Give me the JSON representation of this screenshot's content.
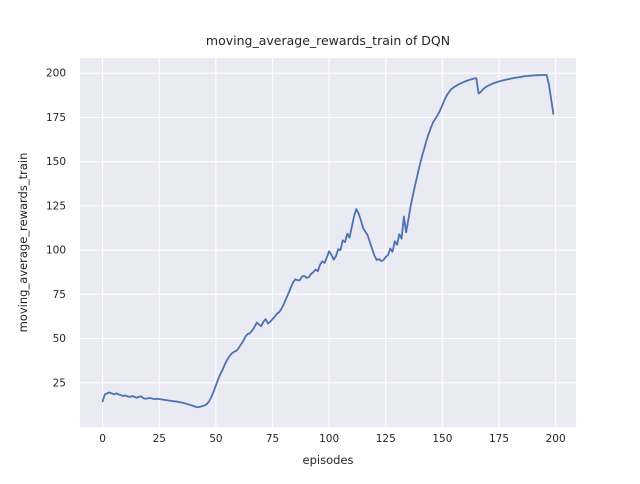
{
  "figure": {
    "background": "#ffffff"
  },
  "chart_data": {
    "type": "line",
    "title": "moving_average_rewards_train of DQN",
    "xlabel": "episodes",
    "ylabel": "moving_average_rewards_train",
    "x_ticks": [
      0,
      25,
      50,
      75,
      100,
      125,
      150,
      175,
      200
    ],
    "y_ticks": [
      25,
      50,
      75,
      100,
      125,
      150,
      175,
      200
    ],
    "xlim": [
      -10,
      209
    ],
    "ylim": [
      0,
      208.6
    ],
    "grid": true,
    "legend": "none",
    "style": {
      "line_color": "#4c72b0",
      "line_width": 1.8,
      "plot_background": "#eaeaf2",
      "grid_color": "#ffffff",
      "text_color": "#262626"
    },
    "series": [
      {
        "name": "DQN",
        "x": [
          0,
          1,
          2,
          3,
          4,
          5,
          6,
          7,
          8,
          9,
          10,
          11,
          12,
          13,
          14,
          15,
          16,
          17,
          18,
          19,
          20,
          21,
          22,
          23,
          24,
          25,
          26,
          27,
          28,
          29,
          30,
          31,
          32,
          33,
          34,
          35,
          36,
          37,
          38,
          39,
          40,
          41,
          42,
          43,
          44,
          45,
          46,
          47,
          48,
          49,
          50,
          51,
          52,
          53,
          54,
          55,
          56,
          57,
          58,
          59,
          60,
          61,
          62,
          63,
          64,
          65,
          66,
          67,
          68,
          69,
          70,
          71,
          72,
          73,
          74,
          75,
          76,
          77,
          78,
          79,
          80,
          81,
          82,
          83,
          84,
          85,
          86,
          87,
          88,
          89,
          90,
          91,
          92,
          93,
          94,
          95,
          96,
          97,
          98,
          99,
          100,
          101,
          102,
          103,
          104,
          105,
          106,
          107,
          108,
          109,
          110,
          111,
          112,
          113,
          114,
          115,
          116,
          117,
          118,
          119,
          120,
          121,
          122,
          123,
          124,
          125,
          126,
          127,
          128,
          129,
          130,
          131,
          132,
          133,
          134,
          135,
          136,
          137,
          138,
          139,
          140,
          141,
          142,
          143,
          144,
          145,
          146,
          147,
          148,
          149,
          150,
          151,
          152,
          153,
          154,
          155,
          156,
          157,
          158,
          159,
          160,
          161,
          162,
          163,
          164,
          165,
          166,
          167,
          168,
          169,
          170,
          171,
          172,
          173,
          174,
          175,
          176,
          177,
          178,
          179,
          180,
          181,
          182,
          183,
          184,
          185,
          186,
          187,
          188,
          189,
          190,
          191,
          192,
          193,
          194,
          195,
          196,
          197,
          198,
          199
        ],
        "y": [
          14.5,
          18.5,
          19,
          19.5,
          19,
          18.5,
          19,
          18.5,
          18,
          17.5,
          17.8,
          17.3,
          17,
          17.5,
          17,
          16.5,
          17,
          17.3,
          16.3,
          16,
          16.2,
          16.4,
          16,
          15.8,
          16,
          15.8,
          15.6,
          15.4,
          15.2,
          15,
          14.8,
          14.6,
          14.5,
          14.3,
          14,
          13.8,
          13.5,
          13.1,
          12.7,
          12.3,
          11.9,
          11.4,
          11.2,
          11.5,
          11.8,
          12.2,
          13,
          14.5,
          17,
          20,
          23.5,
          27,
          30,
          32.5,
          35.5,
          38,
          40,
          41.5,
          42.5,
          43,
          44.5,
          46.5,
          48.5,
          51,
          52.5,
          53,
          54.5,
          56.5,
          59,
          58,
          57,
          59.5,
          61,
          58.5,
          59.5,
          61,
          62.5,
          64,
          65,
          67,
          69.5,
          72.5,
          75.5,
          78.5,
          81.5,
          83.5,
          83,
          82.9,
          85,
          85.5,
          84.3,
          84.6,
          86.5,
          87.5,
          89,
          88,
          91.8,
          93.7,
          92.7,
          96,
          99.3,
          97.4,
          94.6,
          96.5,
          100.5,
          100,
          105.5,
          104.5,
          109.3,
          107,
          113,
          119,
          123.2,
          120.7,
          117,
          112.5,
          110.3,
          108.5,
          104.5,
          100.5,
          97,
          94.4,
          94.9,
          93.8,
          94.4,
          96.2,
          97.2,
          100.9,
          99.1,
          105,
          103,
          109,
          106.5,
          119,
          110,
          117.5,
          125,
          131,
          137,
          142.5,
          148,
          153,
          157.5,
          162,
          166,
          169.5,
          172.5,
          174.5,
          176.5,
          179,
          182,
          185,
          187.5,
          189.5,
          191,
          192,
          192.8,
          193.5,
          194.2,
          194.8,
          195.3,
          195.8,
          196.3,
          196.7,
          197,
          197.2,
          188.5,
          189.5,
          191,
          192,
          192.8,
          193.4,
          194,
          194.5,
          194.9,
          195.3,
          195.7,
          196,
          196.3,
          196.6,
          196.9,
          197.2,
          197.4,
          197.6,
          197.8,
          198,
          198.2,
          198.4,
          198.5,
          198.6,
          198.7,
          198.8,
          198.9,
          198.9,
          199,
          199,
          199,
          194,
          185.5,
          177
        ]
      }
    ]
  }
}
